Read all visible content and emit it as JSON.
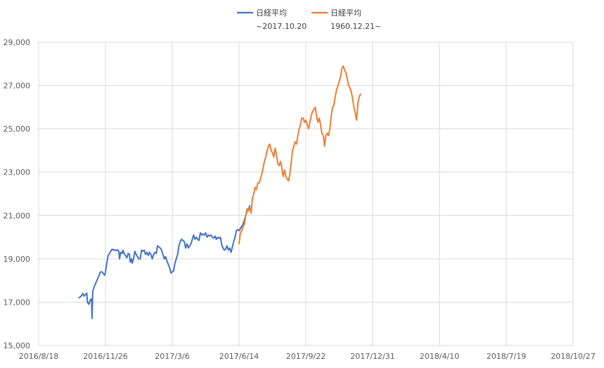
{
  "chart_data": {
    "type": "line",
    "y_ticks": [
      15000,
      17000,
      19000,
      21000,
      23000,
      25000,
      27000,
      29000
    ],
    "y_tick_labels": [
      "15,000",
      "17,000",
      "19,000",
      "21,000",
      "23,000",
      "25,000",
      "27,000",
      "29,000"
    ],
    "ylim": [
      15000,
      29000
    ],
    "x_tick_labels": [
      "2016/8/18",
      "2016/11/26",
      "2017/3/6",
      "2017/6/14",
      "2017/9/22",
      "2017/12/31",
      "2018/4/10",
      "2018/7/19",
      "2018/10/27"
    ],
    "x_tick_days": [
      0,
      100,
      200,
      300,
      400,
      500,
      600,
      700,
      800
    ],
    "xlim": [
      0,
      800
    ],
    "grid": true,
    "legend_position": "top",
    "series": [
      {
        "name": "日経平均",
        "sublabel": "~2017.10.20",
        "color": "#4472C4",
        "points": [
          [
            60,
            17200
          ],
          [
            63,
            17250
          ],
          [
            66,
            17400
          ],
          [
            68,
            17280
          ],
          [
            70,
            17350
          ],
          [
            72,
            17420
          ],
          [
            73,
            17000
          ],
          [
            75,
            16900
          ],
          [
            77,
            17100
          ],
          [
            79,
            17150
          ],
          [
            80,
            16250
          ],
          [
            81,
            17500
          ],
          [
            83,
            17700
          ],
          [
            85,
            17850
          ],
          [
            87,
            18000
          ],
          [
            90,
            18200
          ],
          [
            92,
            18380
          ],
          [
            95,
            18400
          ],
          [
            97,
            18300
          ],
          [
            99,
            18250
          ],
          [
            100,
            18400
          ],
          [
            102,
            18800
          ],
          [
            104,
            19150
          ],
          [
            106,
            19250
          ],
          [
            108,
            19350
          ],
          [
            110,
            19450
          ],
          [
            112,
            19400
          ],
          [
            114,
            19420
          ],
          [
            116,
            19380
          ],
          [
            118,
            19420
          ],
          [
            120,
            19350
          ],
          [
            121,
            19000
          ],
          [
            123,
            19300
          ],
          [
            125,
            19250
          ],
          [
            126,
            19400
          ],
          [
            128,
            19250
          ],
          [
            130,
            19150
          ],
          [
            132,
            19050
          ],
          [
            134,
            19250
          ],
          [
            136,
            19200
          ],
          [
            137,
            18850
          ],
          [
            139,
            19000
          ],
          [
            140,
            18800
          ],
          [
            142,
            19000
          ],
          [
            144,
            19350
          ],
          [
            146,
            19200
          ],
          [
            148,
            19100
          ],
          [
            150,
            19000
          ],
          [
            152,
            19000
          ],
          [
            154,
            19400
          ],
          [
            156,
            19350
          ],
          [
            158,
            19400
          ],
          [
            160,
            19200
          ],
          [
            162,
            19300
          ],
          [
            164,
            19150
          ],
          [
            166,
            19300
          ],
          [
            168,
            19200
          ],
          [
            170,
            19000
          ],
          [
            172,
            19200
          ],
          [
            174,
            19300
          ],
          [
            176,
            19250
          ],
          [
            178,
            19600
          ],
          [
            180,
            19550
          ],
          [
            182,
            19500
          ],
          [
            184,
            19400
          ],
          [
            186,
            19200
          ],
          [
            188,
            19000
          ],
          [
            190,
            19100
          ],
          [
            192,
            18900
          ],
          [
            194,
            18750
          ],
          [
            196,
            18600
          ],
          [
            198,
            18350
          ],
          [
            200,
            18400
          ],
          [
            202,
            18450
          ],
          [
            204,
            18800
          ],
          [
            206,
            19000
          ],
          [
            208,
            19200
          ],
          [
            210,
            19600
          ],
          [
            212,
            19800
          ],
          [
            214,
            19900
          ],
          [
            216,
            19850
          ],
          [
            218,
            19800
          ],
          [
            220,
            19500
          ],
          [
            222,
            19700
          ],
          [
            224,
            19500
          ],
          [
            226,
            19600
          ],
          [
            228,
            19700
          ],
          [
            230,
            19900
          ],
          [
            232,
            20100
          ],
          [
            234,
            19900
          ],
          [
            236,
            20000
          ],
          [
            238,
            19900
          ],
          [
            240,
            19850
          ],
          [
            242,
            20200
          ],
          [
            244,
            20100
          ],
          [
            246,
            20150
          ],
          [
            248,
            20100
          ],
          [
            250,
            20200
          ],
          [
            252,
            20000
          ],
          [
            254,
            20100
          ],
          [
            256,
            20050
          ],
          [
            258,
            20100
          ],
          [
            260,
            20000
          ],
          [
            262,
            19950
          ],
          [
            264,
            20050
          ],
          [
            266,
            19900
          ],
          [
            268,
            20000
          ],
          [
            270,
            19950
          ],
          [
            272,
            20000
          ],
          [
            274,
            19650
          ],
          [
            276,
            19500
          ],
          [
            278,
            19400
          ],
          [
            280,
            19450
          ],
          [
            282,
            19600
          ],
          [
            284,
            19400
          ],
          [
            286,
            19500
          ],
          [
            288,
            19300
          ],
          [
            290,
            19550
          ],
          [
            292,
            19800
          ],
          [
            294,
            20000
          ],
          [
            296,
            20300
          ],
          [
            298,
            20350
          ],
          [
            300,
            20300
          ],
          [
            302,
            20400
          ],
          [
            304,
            20500
          ],
          [
            306,
            20600
          ],
          [
            308,
            20800
          ],
          [
            310,
            21000
          ],
          [
            312,
            21200
          ],
          [
            314,
            21300
          ],
          [
            316,
            21450
          ]
        ]
      },
      {
        "name": "日経平均",
        "sublabel": "1960.12.21~",
        "color": "#ED7D31",
        "points": [
          [
            300,
            19700
          ],
          [
            302,
            20200
          ],
          [
            304,
            20300
          ],
          [
            306,
            20500
          ],
          [
            308,
            20600
          ],
          [
            310,
            21000
          ],
          [
            312,
            21300
          ],
          [
            314,
            21200
          ],
          [
            316,
            21400
          ],
          [
            318,
            21100
          ],
          [
            320,
            21800
          ],
          [
            322,
            22000
          ],
          [
            324,
            22300
          ],
          [
            326,
            22200
          ],
          [
            328,
            22500
          ],
          [
            330,
            22500
          ],
          [
            332,
            22700
          ],
          [
            334,
            22900
          ],
          [
            336,
            23200
          ],
          [
            338,
            23500
          ],
          [
            340,
            23700
          ],
          [
            342,
            24000
          ],
          [
            344,
            24200
          ],
          [
            346,
            24300
          ],
          [
            348,
            24000
          ],
          [
            350,
            23900
          ],
          [
            352,
            23700
          ],
          [
            354,
            24100
          ],
          [
            356,
            23800
          ],
          [
            358,
            23400
          ],
          [
            360,
            23300
          ],
          [
            362,
            23500
          ],
          [
            364,
            23200
          ],
          [
            366,
            22800
          ],
          [
            368,
            23100
          ],
          [
            370,
            22800
          ],
          [
            372,
            22700
          ],
          [
            374,
            22600
          ],
          [
            376,
            22900
          ],
          [
            378,
            23400
          ],
          [
            380,
            24000
          ],
          [
            382,
            24200
          ],
          [
            384,
            24400
          ],
          [
            386,
            24300
          ],
          [
            388,
            24700
          ],
          [
            390,
            25000
          ],
          [
            392,
            25200
          ],
          [
            394,
            25500
          ],
          [
            396,
            25500
          ],
          [
            398,
            25300
          ],
          [
            400,
            25400
          ],
          [
            402,
            25200
          ],
          [
            404,
            25000
          ],
          [
            406,
            25300
          ],
          [
            408,
            25600
          ],
          [
            410,
            25800
          ],
          [
            412,
            25900
          ],
          [
            414,
            26000
          ],
          [
            416,
            25600
          ],
          [
            418,
            25300
          ],
          [
            420,
            25500
          ],
          [
            422,
            25200
          ],
          [
            424,
            24800
          ],
          [
            426,
            24700
          ],
          [
            428,
            24200
          ],
          [
            430,
            24700
          ],
          [
            432,
            24800
          ],
          [
            434,
            24700
          ],
          [
            436,
            25000
          ],
          [
            438,
            25600
          ],
          [
            440,
            26000
          ],
          [
            442,
            26100
          ],
          [
            444,
            26500
          ],
          [
            446,
            26800
          ],
          [
            448,
            27000
          ],
          [
            450,
            27200
          ],
          [
            452,
            27400
          ],
          [
            454,
            27800
          ],
          [
            456,
            27900
          ],
          [
            458,
            27700
          ],
          [
            460,
            27600
          ],
          [
            462,
            27300
          ],
          [
            464,
            27000
          ],
          [
            466,
            26900
          ],
          [
            468,
            26700
          ],
          [
            470,
            26400
          ],
          [
            472,
            26000
          ],
          [
            474,
            25700
          ],
          [
            476,
            25400
          ],
          [
            478,
            26200
          ],
          [
            480,
            26500
          ],
          [
            482,
            26600
          ]
        ]
      }
    ]
  }
}
